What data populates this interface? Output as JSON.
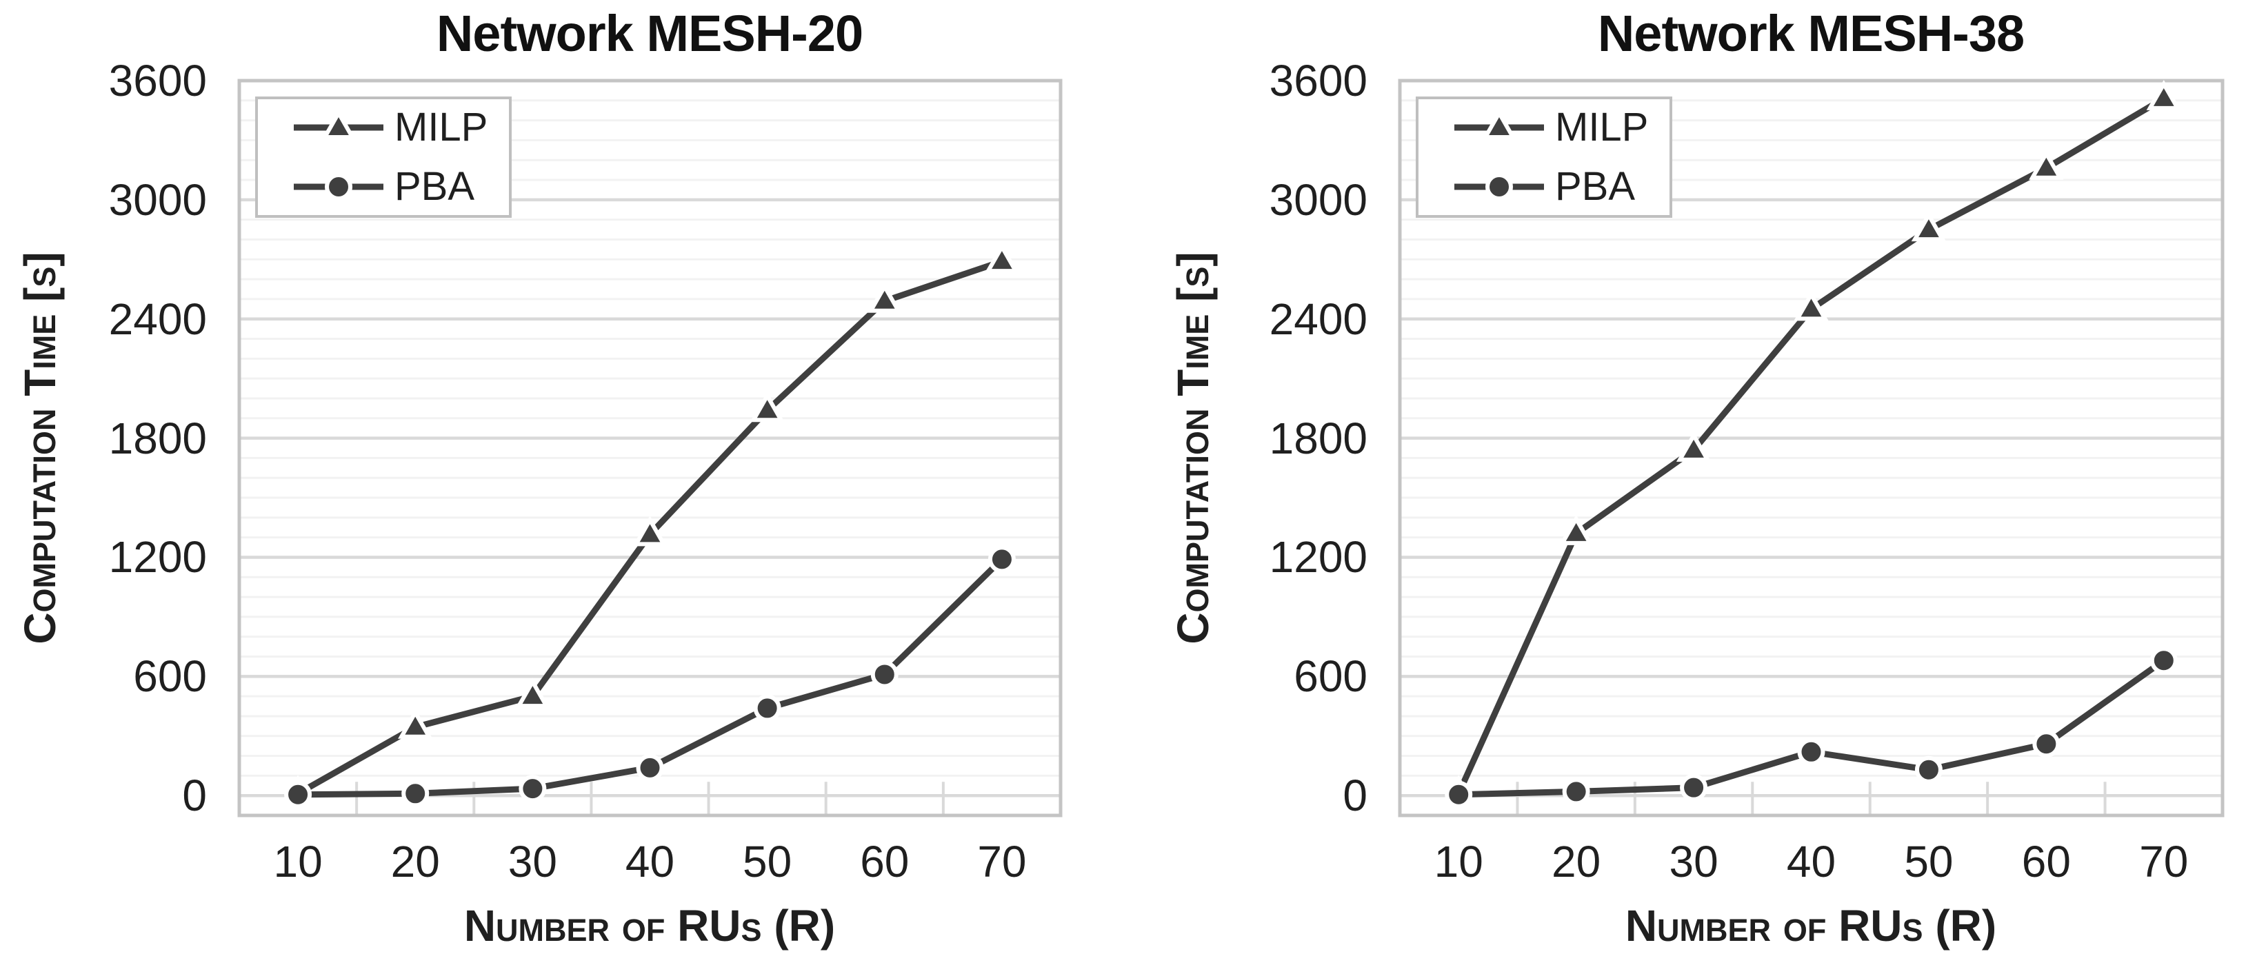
{
  "styles": {
    "series_color": "#3f3f3f",
    "minor_grid_color": "#f2f2f2",
    "major_grid_color": "#d9d9d9",
    "frame_color": "#c4c4c4",
    "legend_border_color": "#bfbfbf",
    "text_color": "#1f1f1f",
    "background": "#ffffff"
  },
  "chart_data": [
    {
      "type": "line",
      "title": "Network MESH-20",
      "xlabel": "Number of RUs (R)",
      "ylabel": "Computation Time [s]",
      "x_categories": [
        10,
        20,
        30,
        40,
        50,
        60,
        70
      ],
      "y_ticks": [
        0,
        600,
        1200,
        1800,
        2400,
        3000,
        3600
      ],
      "ylim": [
        -100,
        3600
      ],
      "minor_unit": 100,
      "major_unit": 600,
      "grid": "horizontal minor+major, on",
      "legend_position": "top-left",
      "series": [
        {
          "name": "MILP",
          "marker": "triangle",
          "values": [
            10,
            345,
            500,
            1315,
            1940,
            2490,
            2690
          ]
        },
        {
          "name": "PBA",
          "marker": "circle",
          "values": [
            5,
            10,
            35,
            140,
            440,
            610,
            1190
          ]
        }
      ]
    },
    {
      "type": "line",
      "title": "Network MESH-38",
      "xlabel": "Number of RUs (R)",
      "ylabel": "Computation Time [s]",
      "x_categories": [
        10,
        20,
        30,
        40,
        50,
        60,
        70
      ],
      "y_ticks": [
        0,
        600,
        1200,
        1800,
        2400,
        3000,
        3600
      ],
      "ylim": [
        -100,
        3600
      ],
      "minor_unit": 100,
      "major_unit": 600,
      "grid": "horizontal minor+major, on",
      "legend_position": "top-left",
      "series": [
        {
          "name": "MILP",
          "marker": "triangle",
          "values": [
            10,
            1320,
            1740,
            2450,
            2850,
            3160,
            3510
          ]
        },
        {
          "name": "PBA",
          "marker": "circle",
          "values": [
            5,
            20,
            40,
            220,
            130,
            260,
            680
          ]
        }
      ]
    }
  ]
}
